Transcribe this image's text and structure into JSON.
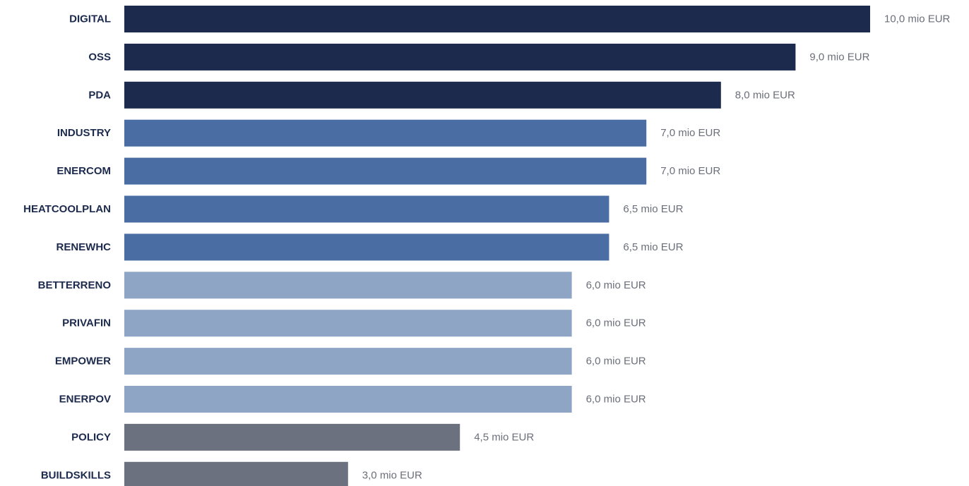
{
  "chart_data": {
    "type": "bar",
    "orientation": "horizontal",
    "categories": [
      "DIGITAL",
      "OSS",
      "PDA",
      "INDUSTRY",
      "ENERCOM",
      "HEATCOOLPLAN",
      "RENEWHC",
      "BETTERRENO",
      "PRIVAFIN",
      "EMPOWER",
      "ENERPOV",
      "POLICY",
      "BUILDSKILLS"
    ],
    "values": [
      10.0,
      9.0,
      8.0,
      7.0,
      7.0,
      6.5,
      6.5,
      6.0,
      6.0,
      6.0,
      6.0,
      4.5,
      3.0
    ],
    "value_labels": [
      "10,0 mio EUR",
      "9,0 mio EUR",
      "8,0 mio EUR",
      "7,0 mio EUR",
      "7,0 mio EUR",
      "6,5 mio EUR",
      "6,5 mio EUR",
      "6,0 mio EUR",
      "6,0 mio EUR",
      "6,0 mio EUR",
      "6,0 mio EUR",
      "4,5 mio EUR",
      "3,0 mio EUR"
    ],
    "bar_colors": [
      "#1c2a4e",
      "#1c2a4e",
      "#1c2a4e",
      "#4a6ea3",
      "#4a6ea3",
      "#4a6ea3",
      "#4a6ea3",
      "#8fa5c6",
      "#8fa5c6",
      "#8fa5c6",
      "#8fa5c6",
      "#6b717e",
      "#6b717e"
    ],
    "title": "",
    "xlabel": "",
    "ylabel": "",
    "xlim": [
      0,
      10
    ],
    "grid": false,
    "legend": "none"
  }
}
